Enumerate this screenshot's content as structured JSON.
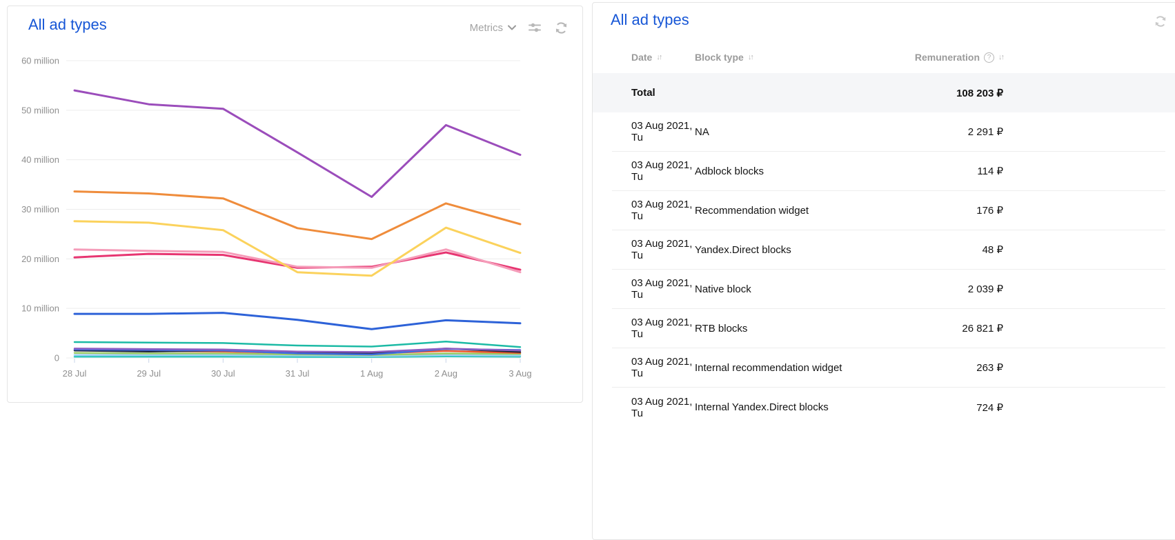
{
  "chart_panel": {
    "title": "All ad types",
    "metrics_label": "Metrics"
  },
  "chart_data": {
    "type": "line",
    "title": "All ad types",
    "x": [
      "28 Jul",
      "29 Jul",
      "30 Jul",
      "31 Jul",
      "1 Aug",
      "2 Aug",
      "3 Aug"
    ],
    "ylim": [
      0,
      60
    ],
    "y_unit": "million",
    "grid": true,
    "legend": "none",
    "yticks": [
      {
        "value": 0,
        "label": "0"
      },
      {
        "value": 10,
        "label": "10 million"
      },
      {
        "value": 20,
        "label": "20 million"
      },
      {
        "value": 30,
        "label": "30 million"
      },
      {
        "value": 40,
        "label": "40 million"
      },
      {
        "value": 50,
        "label": "50 million"
      },
      {
        "value": 60,
        "label": "60 million"
      }
    ],
    "series": [
      {
        "name": "series-purple",
        "color": "#9b4dbb",
        "values": [
          54.0,
          51.2,
          50.3,
          41.5,
          32.5,
          47.0,
          41.0
        ]
      },
      {
        "name": "series-orange",
        "color": "#ef8c3b",
        "values": [
          33.6,
          33.2,
          32.2,
          26.2,
          24.0,
          31.2,
          27.0
        ]
      },
      {
        "name": "series-yellow",
        "color": "#fbd25c",
        "values": [
          27.6,
          27.3,
          25.8,
          17.3,
          16.6,
          26.3,
          21.2
        ]
      },
      {
        "name": "series-pink",
        "color": "#f59cb9",
        "values": [
          21.9,
          21.6,
          21.4,
          18.4,
          18.2,
          21.9,
          17.3
        ]
      },
      {
        "name": "series-crimson",
        "color": "#e73571",
        "values": [
          20.3,
          21.0,
          20.8,
          18.2,
          18.4,
          21.3,
          17.8
        ]
      },
      {
        "name": "series-blue",
        "color": "#2d62d8",
        "values": [
          8.9,
          8.9,
          9.1,
          7.7,
          5.8,
          7.6,
          7.0
        ]
      },
      {
        "name": "series-teal",
        "color": "#1cbaa5",
        "values": [
          3.2,
          3.1,
          3.0,
          2.5,
          2.3,
          3.3,
          2.2
        ]
      },
      {
        "name": "series-violet",
        "color": "#8d5ec2",
        "values": [
          1.9,
          1.8,
          1.7,
          1.3,
          1.2,
          1.9,
          1.5
        ]
      },
      {
        "name": "series-royal-blue",
        "color": "#3f6ce0",
        "values": [
          1.7,
          1.6,
          1.5,
          0.9,
          0.7,
          1.8,
          1.6
        ]
      },
      {
        "name": "series-navy",
        "color": "#20263c",
        "values": [
          1.5,
          1.3,
          1.5,
          1.0,
          0.9,
          1.9,
          1.2
        ]
      },
      {
        "name": "series-red-orange",
        "color": "#f0572c",
        "values": [
          1.6,
          1.4,
          1.3,
          1.0,
          0.9,
          1.4,
          1.0
        ]
      },
      {
        "name": "series-light-green",
        "color": "#9ccc65",
        "values": [
          1.0,
          0.9,
          0.9,
          0.7,
          0.6,
          0.9,
          0.8
        ]
      },
      {
        "name": "series-light-blue",
        "color": "#9fd0f5",
        "values": [
          0.6,
          0.6,
          0.6,
          0.5,
          0.4,
          0.6,
          0.5
        ]
      },
      {
        "name": "series-cyan",
        "color": "#35c7c0",
        "values": [
          0.25,
          0.25,
          0.25,
          0.2,
          0.2,
          0.3,
          0.25
        ]
      }
    ]
  },
  "table_panel": {
    "title": "All ad types",
    "columns": [
      {
        "label": "Date"
      },
      {
        "label": "Block type"
      },
      {
        "label": "Remuneration"
      }
    ],
    "sort_glyph": "↓↑",
    "help_glyph": "?",
    "total_row": {
      "label": "Total",
      "remuneration": "108 203 ₽"
    },
    "rows": [
      {
        "date": "03 Aug 2021, Tu",
        "block_type": "NA",
        "remuneration": "2 291 ₽"
      },
      {
        "date": "03 Aug 2021, Tu",
        "block_type": "Adblock blocks",
        "remuneration": "114 ₽"
      },
      {
        "date": "03 Aug 2021, Tu",
        "block_type": "Recommendation widget",
        "remuneration": "176 ₽"
      },
      {
        "date": "03 Aug 2021, Tu",
        "block_type": "Yandex.Direct blocks",
        "remuneration": "48 ₽"
      },
      {
        "date": "03 Aug 2021, Tu",
        "block_type": "Native block",
        "remuneration": "2 039 ₽"
      },
      {
        "date": "03 Aug 2021, Tu",
        "block_type": "RTB blocks",
        "remuneration": "26 821 ₽"
      },
      {
        "date": "03 Aug 2021, Tu",
        "block_type": "Internal recommendation widget",
        "remuneration": "263 ₽"
      },
      {
        "date": "03 Aug 2021, Tu",
        "block_type": "Internal Yandex.Direct blocks",
        "remuneration": "724 ₽"
      }
    ]
  },
  "colors": {
    "title_blue": "#1656d6",
    "grid_line": "#ececec",
    "axis_text": "#8f8f8f",
    "x_tick": "#c9d4e8",
    "total_row_bg": "#f5f6f8"
  }
}
